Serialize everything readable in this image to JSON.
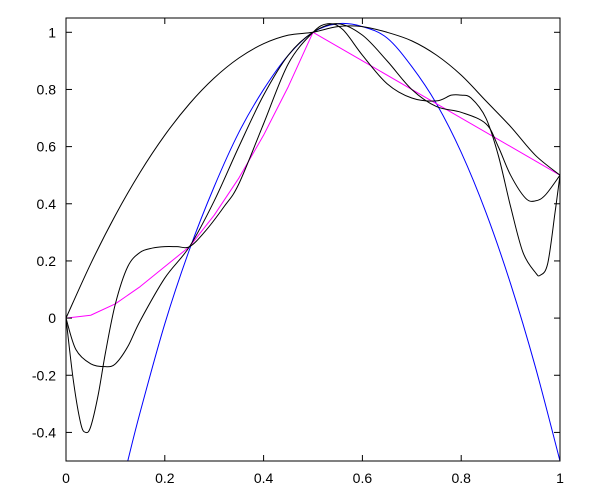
{
  "chart_data": {
    "type": "line",
    "title": "",
    "xlabel": "",
    "ylabel": "",
    "xlim": [
      0,
      1
    ],
    "ylim": [
      -0.5,
      1.05
    ],
    "grid": false,
    "legend": "none",
    "xticks": [
      0,
      0.2,
      0.4,
      0.6,
      0.8,
      1
    ],
    "xtick_labels": [
      "0",
      "0.2",
      "0.4",
      "0.6",
      "0.8",
      "1"
    ],
    "yticks": [
      -0.4,
      -0.2,
      0,
      0.2,
      0.4,
      0.6,
      0.8,
      1
    ],
    "ytick_labels": [
      "-0.4",
      "-0.2",
      "0",
      "0.2",
      "0.4",
      "0.6",
      "0.8",
      "1"
    ],
    "series": [
      {
        "color": "#0000ff",
        "x": [
          0.125,
          0.15,
          0.2,
          0.25,
          0.3,
          0.35,
          0.4,
          0.45,
          0.5,
          0.55,
          0.6,
          0.65,
          0.7,
          0.75,
          0.8,
          0.85,
          0.9,
          0.95,
          1.0
        ],
        "y": [
          -0.5,
          -0.33,
          -0.02,
          0.24,
          0.46,
          0.65,
          0.8,
          0.92,
          1.0,
          1.03,
          1.02,
          0.98,
          0.88,
          0.75,
          0.58,
          0.37,
          0.12,
          -0.17,
          -0.5
        ]
      },
      {
        "color": "#ff00ff",
        "x": [
          0,
          0.05,
          0.1,
          0.15,
          0.2,
          0.25,
          0.3,
          0.35,
          0.4,
          0.45,
          0.5,
          0.6,
          0.7,
          0.8,
          0.9,
          1.0
        ],
        "y": [
          0,
          0.01,
          0.05,
          0.11,
          0.18,
          0.25,
          0.36,
          0.49,
          0.64,
          0.81,
          1.0,
          0.9,
          0.8,
          0.7,
          0.6,
          0.5
        ]
      },
      {
        "color": "#000000",
        "x": [
          0,
          0.05,
          0.1,
          0.15,
          0.2,
          0.25,
          0.3,
          0.35,
          0.4,
          0.45,
          0.5,
          0.55,
          0.6,
          0.65,
          0.7,
          0.75,
          0.8,
          0.85,
          0.9,
          0.95,
          1.0
        ],
        "y": [
          0,
          0.19,
          0.36,
          0.51,
          0.64,
          0.75,
          0.84,
          0.91,
          0.96,
          0.99,
          1.0,
          1.02,
          1.02,
          1.0,
          0.97,
          0.92,
          0.85,
          0.76,
          0.67,
          0.57,
          0.5
        ]
      },
      {
        "color": "#000000",
        "x": [
          0,
          0.02,
          0.05,
          0.08,
          0.1,
          0.125,
          0.15,
          0.2,
          0.25,
          0.3,
          0.35,
          0.4,
          0.45,
          0.5,
          0.55,
          0.6,
          0.65,
          0.7,
          0.75,
          0.8,
          0.85,
          0.875,
          0.9,
          0.93,
          0.95,
          0.97,
          1.0
        ],
        "y": [
          0,
          -0.11,
          -0.16,
          -0.17,
          -0.16,
          -0.1,
          -0.01,
          0.14,
          0.25,
          0.41,
          0.6,
          0.78,
          0.92,
          1.0,
          1.03,
          0.99,
          0.9,
          0.8,
          0.74,
          0.72,
          0.68,
          0.6,
          0.5,
          0.42,
          0.41,
          0.43,
          0.5
        ]
      },
      {
        "color": "#000000",
        "x": [
          0,
          0.015,
          0.03,
          0.04,
          0.05,
          0.065,
          0.08,
          0.1,
          0.125,
          0.15,
          0.175,
          0.2,
          0.225,
          0.25,
          0.28,
          0.32,
          0.35,
          0.4,
          0.45,
          0.5,
          0.53,
          0.56,
          0.6,
          0.65,
          0.7,
          0.75,
          0.78,
          0.8,
          0.82,
          0.85,
          0.875,
          0.9,
          0.925,
          0.95,
          0.96,
          0.975,
          0.99,
          1.0
        ],
        "y": [
          0,
          -0.22,
          -0.37,
          -0.4,
          -0.38,
          -0.27,
          -0.12,
          0.05,
          0.18,
          0.23,
          0.245,
          0.25,
          0.25,
          0.25,
          0.3,
          0.39,
          0.47,
          0.68,
          0.89,
          1.0,
          1.03,
          1.01,
          0.92,
          0.82,
          0.77,
          0.76,
          0.78,
          0.78,
          0.77,
          0.7,
          0.57,
          0.39,
          0.23,
          0.16,
          0.15,
          0.19,
          0.37,
          0.5
        ]
      }
    ]
  }
}
